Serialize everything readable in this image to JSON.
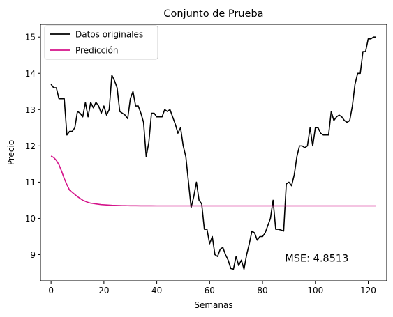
{
  "chart_data": {
    "type": "line",
    "title": "Conjunto de Prueba",
    "xlabel": "Semanas",
    "ylabel": "Precio",
    "xlim": [
      -4,
      127
    ],
    "ylim": [
      8.28,
      15.35
    ],
    "xticks": [
      0,
      20,
      40,
      60,
      80,
      100,
      120
    ],
    "yticks": [
      9,
      10,
      11,
      12,
      13,
      14,
      15
    ],
    "grid": false,
    "legend_position": "top-left",
    "annotation": {
      "text": "MSE: 4.8513",
      "x": 88.5,
      "y": 8.9
    },
    "series": [
      {
        "name": "Datos originales",
        "color": "#000000",
        "x": [
          0,
          1,
          2,
          3,
          4,
          5,
          6,
          7,
          8,
          9,
          10,
          11,
          12,
          13,
          14,
          15,
          16,
          17,
          18,
          19,
          20,
          21,
          22,
          23,
          24,
          25,
          26,
          27,
          28,
          29,
          30,
          31,
          32,
          33,
          34,
          35,
          36,
          37,
          38,
          39,
          40,
          41,
          42,
          43,
          44,
          45,
          46,
          47,
          48,
          49,
          50,
          51,
          52,
          53,
          54,
          55,
          56,
          57,
          58,
          59,
          60,
          61,
          62,
          63,
          64,
          65,
          66,
          67,
          68,
          69,
          70,
          71,
          72,
          73,
          74,
          75,
          76,
          77,
          78,
          79,
          80,
          81,
          82,
          83,
          84,
          85,
          86,
          87,
          88,
          89,
          90,
          91,
          92,
          93,
          94,
          95,
          96,
          97,
          98,
          99,
          100,
          101,
          102,
          103,
          104,
          105,
          106,
          107,
          108,
          109,
          110,
          111,
          112,
          113,
          114,
          115,
          116,
          117,
          118,
          119,
          120,
          121,
          122,
          123
        ],
        "values": [
          13.7,
          13.6,
          13.6,
          13.3,
          13.3,
          13.3,
          12.3,
          12.4,
          12.4,
          12.5,
          12.95,
          12.9,
          12.8,
          13.2,
          12.8,
          13.2,
          13.05,
          13.2,
          13.1,
          12.9,
          13.1,
          12.85,
          13.0,
          13.95,
          13.8,
          13.6,
          12.95,
          12.9,
          12.85,
          12.75,
          13.3,
          13.5,
          13.1,
          13.1,
          12.9,
          12.65,
          11.7,
          12.1,
          12.9,
          12.9,
          12.8,
          12.8,
          12.8,
          13.0,
          12.95,
          13.0,
          12.8,
          12.6,
          12.35,
          12.5,
          12.0,
          11.7,
          11.0,
          10.3,
          10.6,
          11.0,
          10.5,
          10.4,
          9.7,
          9.7,
          9.3,
          9.5,
          9.0,
          8.95,
          9.15,
          9.2,
          9.0,
          8.85,
          8.62,
          8.6,
          8.95,
          8.7,
          8.85,
          8.6,
          9.0,
          9.3,
          9.65,
          9.6,
          9.4,
          9.5,
          9.5,
          9.6,
          9.8,
          10.0,
          10.5,
          9.7,
          9.7,
          9.68,
          9.65,
          10.95,
          11.0,
          10.9,
          11.2,
          11.7,
          12.0,
          12.0,
          11.95,
          12.0,
          12.5,
          12.0,
          12.5,
          12.5,
          12.35,
          12.3,
          12.3,
          12.3,
          12.95,
          12.7,
          12.8,
          12.85,
          12.8,
          12.7,
          12.65,
          12.7,
          13.1,
          13.7,
          14.0,
          14.0,
          14.6,
          14.6,
          14.95,
          14.95,
          15.0,
          15.0
        ]
      },
      {
        "name": "Predicción",
        "color": "#d4138a",
        "x": [
          0,
          1,
          2,
          3,
          4,
          5,
          6,
          7,
          8,
          9,
          10,
          11,
          12,
          13,
          14,
          15,
          16,
          17,
          18,
          19,
          20,
          21,
          22,
          23,
          24,
          25,
          26,
          27,
          28,
          29,
          30,
          32,
          34,
          36,
          38,
          40,
          45,
          50,
          55,
          60,
          70,
          80,
          90,
          100,
          110,
          123
        ],
        "values": [
          11.72,
          11.68,
          11.6,
          11.48,
          11.3,
          11.1,
          10.93,
          10.78,
          10.72,
          10.66,
          10.6,
          10.55,
          10.5,
          10.47,
          10.44,
          10.42,
          10.41,
          10.4,
          10.39,
          10.38,
          10.375,
          10.37,
          10.365,
          10.36,
          10.358,
          10.356,
          10.354,
          10.352,
          10.351,
          10.35,
          10.349,
          10.348,
          10.347,
          10.346,
          10.346,
          10.345,
          10.345,
          10.345,
          10.345,
          10.345,
          10.345,
          10.345,
          10.345,
          10.345,
          10.345,
          10.345
        ]
      }
    ]
  }
}
